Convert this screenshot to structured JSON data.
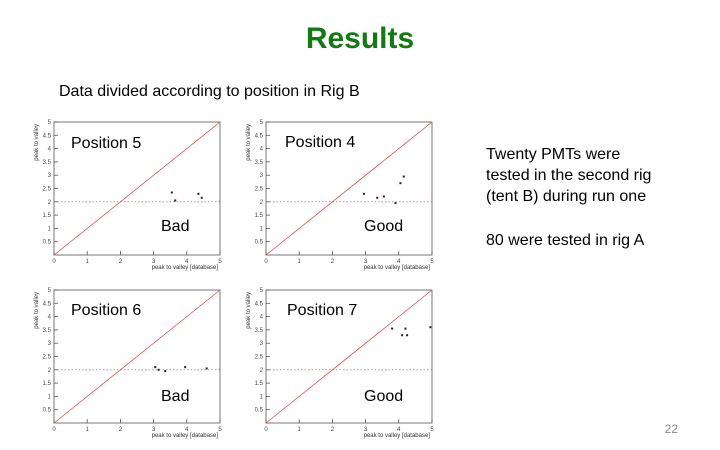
{
  "slide": {
    "title": "Results",
    "subtitle": "Data divided according to position in Rig B",
    "page_number": "22"
  },
  "notes": {
    "line1": "Twenty PMTs were",
    "line2": "tested in the second rig",
    "line3": "(tent B) during run one",
    "line4": "80 were tested in rig A"
  },
  "colors": {
    "title": "#137a13",
    "diagonal": "#e05050",
    "gridline": "#d04040",
    "axis": "#555555",
    "points": "#222222"
  },
  "chart_data": [
    {
      "type": "scatter",
      "position_label": "Position 5",
      "verdict": "Bad",
      "xlabel": "peak to valley [database]",
      "ylabel": "peak to valley",
      "xlim": [
        0,
        5
      ],
      "ylim": [
        0,
        5
      ],
      "x_ticks": [
        "0",
        "1",
        "2",
        "3",
        "4",
        "5"
      ],
      "y_ticks": [
        "0.5",
        "1",
        "1.5",
        "2",
        "2.5",
        "3",
        "3.5",
        "4",
        "4.5",
        "5"
      ],
      "reference_line_y": 2,
      "diagonal": true,
      "points": [
        {
          "x": 3.55,
          "y": 2.35
        },
        {
          "x": 3.65,
          "y": 2.05
        },
        {
          "x": 4.35,
          "y": 2.3
        },
        {
          "x": 4.45,
          "y": 2.15
        }
      ]
    },
    {
      "type": "scatter",
      "position_label": "Position 4",
      "verdict": "Good",
      "xlabel": "peak to valley [database]",
      "ylabel": "peak to valley",
      "xlim": [
        0,
        5
      ],
      "ylim": [
        0,
        5
      ],
      "x_ticks": [
        "0",
        "1",
        "2",
        "3",
        "4",
        "5"
      ],
      "y_ticks": [
        "0.5",
        "1",
        "1.5",
        "2",
        "2.5",
        "3",
        "3.5",
        "4",
        "4.5",
        "5"
      ],
      "reference_line_y": 2,
      "diagonal": true,
      "points": [
        {
          "x": 2.95,
          "y": 2.3
        },
        {
          "x": 3.35,
          "y": 2.15
        },
        {
          "x": 3.55,
          "y": 2.2
        },
        {
          "x": 4.05,
          "y": 2.7
        },
        {
          "x": 4.15,
          "y": 2.95
        },
        {
          "x": 3.9,
          "y": 1.95
        }
      ]
    },
    {
      "type": "scatter",
      "position_label": "Position 6",
      "verdict": "Bad",
      "xlabel": "peak to valley [database]",
      "ylabel": "peak to valley",
      "xlim": [
        0,
        5
      ],
      "ylim": [
        0,
        5
      ],
      "x_ticks": [
        "0",
        "1",
        "2",
        "3",
        "4",
        "5"
      ],
      "y_ticks": [
        "0.5",
        "1",
        "1.5",
        "2",
        "2.5",
        "3",
        "3.5",
        "4",
        "4.5",
        "5"
      ],
      "reference_line_y": 2,
      "diagonal": true,
      "points": [
        {
          "x": 3.05,
          "y": 2.1
        },
        {
          "x": 3.15,
          "y": 2.0
        },
        {
          "x": 3.35,
          "y": 1.95
        },
        {
          "x": 3.95,
          "y": 2.1
        },
        {
          "x": 4.6,
          "y": 2.05
        }
      ]
    },
    {
      "type": "scatter",
      "position_label": "Position 7",
      "verdict": "Good",
      "xlabel": "peak to valley [database]",
      "ylabel": "peak to valley",
      "xlim": [
        0,
        5
      ],
      "ylim": [
        0,
        5
      ],
      "x_ticks": [
        "0",
        "1",
        "2",
        "3",
        "4",
        "5"
      ],
      "y_ticks": [
        "0.5",
        "1",
        "1.5",
        "2",
        "2.5",
        "3",
        "3.5",
        "4",
        "4.5",
        "5"
      ],
      "reference_line_y": 2,
      "diagonal": true,
      "points": [
        {
          "x": 3.8,
          "y": 3.55
        },
        {
          "x": 4.1,
          "y": 3.3
        },
        {
          "x": 4.2,
          "y": 3.55
        },
        {
          "x": 4.25,
          "y": 3.3
        },
        {
          "x": 4.95,
          "y": 3.6
        }
      ]
    }
  ]
}
